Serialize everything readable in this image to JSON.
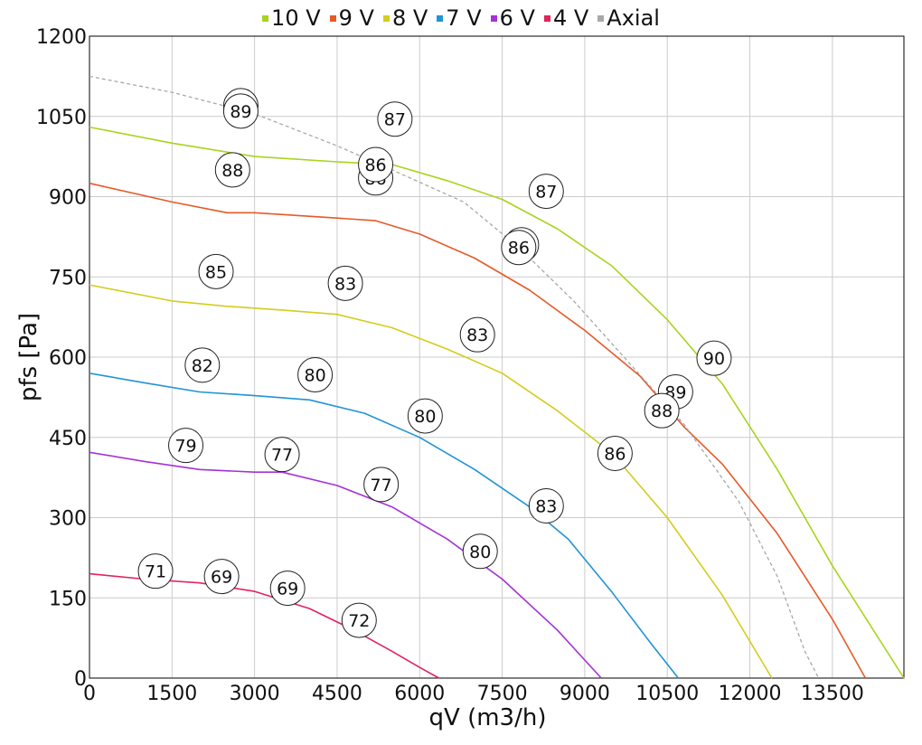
{
  "chart_data": {
    "type": "line",
    "xlabel": "qV (m3/h)",
    "ylabel": "pfs [Pa]",
    "xlim": [
      0,
      14800
    ],
    "ylim": [
      0,
      1200
    ],
    "xticks": [
      0,
      1500,
      3000,
      4500,
      6000,
      7500,
      9000,
      10500,
      12000,
      13500
    ],
    "yticks": [
      0,
      150,
      300,
      450,
      600,
      750,
      900,
      1050,
      1200
    ],
    "grid": true,
    "legend_position": "top-center",
    "series": [
      {
        "name": "10 V",
        "color": "#a8d41c",
        "points": [
          [
            0,
            1030
          ],
          [
            1500,
            1000
          ],
          [
            3000,
            975
          ],
          [
            4500,
            965
          ],
          [
            5500,
            960
          ],
          [
            6500,
            930
          ],
          [
            7500,
            895
          ],
          [
            8500,
            840
          ],
          [
            9500,
            770
          ],
          [
            10500,
            670
          ],
          [
            11500,
            550
          ],
          [
            12500,
            390
          ],
          [
            13500,
            210
          ],
          [
            14800,
            0
          ]
        ]
      },
      {
        "name": "9 V",
        "color": "#e65a28",
        "points": [
          [
            0,
            925
          ],
          [
            1500,
            890
          ],
          [
            2500,
            870
          ],
          [
            3000,
            870
          ],
          [
            4500,
            860
          ],
          [
            5200,
            855
          ],
          [
            6000,
            830
          ],
          [
            7000,
            785
          ],
          [
            8000,
            725
          ],
          [
            9000,
            650
          ],
          [
            10000,
            565
          ],
          [
            10800,
            470
          ],
          [
            11500,
            400
          ],
          [
            12500,
            270
          ],
          [
            13500,
            110
          ],
          [
            14100,
            0
          ]
        ]
      },
      {
        "name": "8 V",
        "color": "#d4cc1e",
        "points": [
          [
            0,
            735
          ],
          [
            1500,
            705
          ],
          [
            2500,
            695
          ],
          [
            3500,
            688
          ],
          [
            4500,
            680
          ],
          [
            5500,
            655
          ],
          [
            6500,
            615
          ],
          [
            7500,
            570
          ],
          [
            8500,
            500
          ],
          [
            9500,
            420
          ],
          [
            10500,
            300
          ],
          [
            11500,
            155
          ],
          [
            12400,
            0
          ]
        ]
      },
      {
        "name": "7 V",
        "color": "#2094d6",
        "points": [
          [
            0,
            570
          ],
          [
            1000,
            552
          ],
          [
            2000,
            535
          ],
          [
            3000,
            528
          ],
          [
            4000,
            520
          ],
          [
            5000,
            495
          ],
          [
            6000,
            450
          ],
          [
            7000,
            390
          ],
          [
            8000,
            320
          ],
          [
            8700,
            260
          ],
          [
            9500,
            160
          ],
          [
            10200,
            65
          ],
          [
            10700,
            0
          ]
        ]
      },
      {
        "name": "6 V",
        "color": "#a432d6",
        "points": [
          [
            0,
            422
          ],
          [
            1000,
            405
          ],
          [
            2000,
            390
          ],
          [
            3000,
            385
          ],
          [
            3500,
            385
          ],
          [
            4500,
            360
          ],
          [
            5500,
            320
          ],
          [
            6500,
            260
          ],
          [
            7500,
            185
          ],
          [
            8500,
            90
          ],
          [
            9300,
            0
          ]
        ]
      },
      {
        "name": "4 V",
        "color": "#e0245e",
        "points": [
          [
            0,
            195
          ],
          [
            1000,
            185
          ],
          [
            2000,
            178
          ],
          [
            3000,
            162
          ],
          [
            4000,
            130
          ],
          [
            4800,
            90
          ],
          [
            5500,
            50
          ],
          [
            6000,
            20
          ],
          [
            6350,
            0
          ]
        ]
      },
      {
        "name": "Axial",
        "color": "#a8a8a8",
        "dashed": true,
        "points": [
          [
            0,
            1125
          ],
          [
            1500,
            1095
          ],
          [
            3000,
            1055
          ],
          [
            4500,
            995
          ],
          [
            5500,
            950
          ],
          [
            6800,
            890
          ],
          [
            7800,
            805
          ],
          [
            8800,
            705
          ],
          [
            9800,
            590
          ],
          [
            10800,
            475
          ],
          [
            11800,
            330
          ],
          [
            12500,
            190
          ],
          [
            13000,
            50
          ],
          [
            13250,
            0
          ]
        ]
      }
    ],
    "annotations": [
      {
        "label": "89",
        "x": 2750,
        "y": 1070
      },
      {
        "label": "89",
        "x": 2750,
        "y": 1060
      },
      {
        "label": "87",
        "x": 5550,
        "y": 1045
      },
      {
        "label": "88",
        "x": 2600,
        "y": 950
      },
      {
        "label": "86",
        "x": 5200,
        "y": 935
      },
      {
        "label": "86",
        "x": 5200,
        "y": 960
      },
      {
        "label": "87",
        "x": 8300,
        "y": 910
      },
      {
        "label": "86",
        "x": 7850,
        "y": 810
      },
      {
        "label": "86",
        "x": 7800,
        "y": 805
      },
      {
        "label": "85",
        "x": 2300,
        "y": 760
      },
      {
        "label": "83",
        "x": 4650,
        "y": 738
      },
      {
        "label": "83",
        "x": 7050,
        "y": 642
      },
      {
        "label": "90",
        "x": 11350,
        "y": 598
      },
      {
        "label": "82",
        "x": 2050,
        "y": 585
      },
      {
        "label": "80",
        "x": 4100,
        "y": 567
      },
      {
        "label": "89",
        "x": 10650,
        "y": 535
      },
      {
        "label": "88",
        "x": 10400,
        "y": 500
      },
      {
        "label": "80",
        "x": 6100,
        "y": 490
      },
      {
        "label": "86",
        "x": 9550,
        "y": 420
      },
      {
        "label": "79",
        "x": 1750,
        "y": 435
      },
      {
        "label": "77",
        "x": 3500,
        "y": 418
      },
      {
        "label": "77",
        "x": 5300,
        "y": 362
      },
      {
        "label": "83",
        "x": 8300,
        "y": 322
      },
      {
        "label": "80",
        "x": 7100,
        "y": 237
      },
      {
        "label": "71",
        "x": 1200,
        "y": 200
      },
      {
        "label": "69",
        "x": 2400,
        "y": 190
      },
      {
        "label": "69",
        "x": 3600,
        "y": 168
      },
      {
        "label": "72",
        "x": 4900,
        "y": 108
      }
    ]
  }
}
